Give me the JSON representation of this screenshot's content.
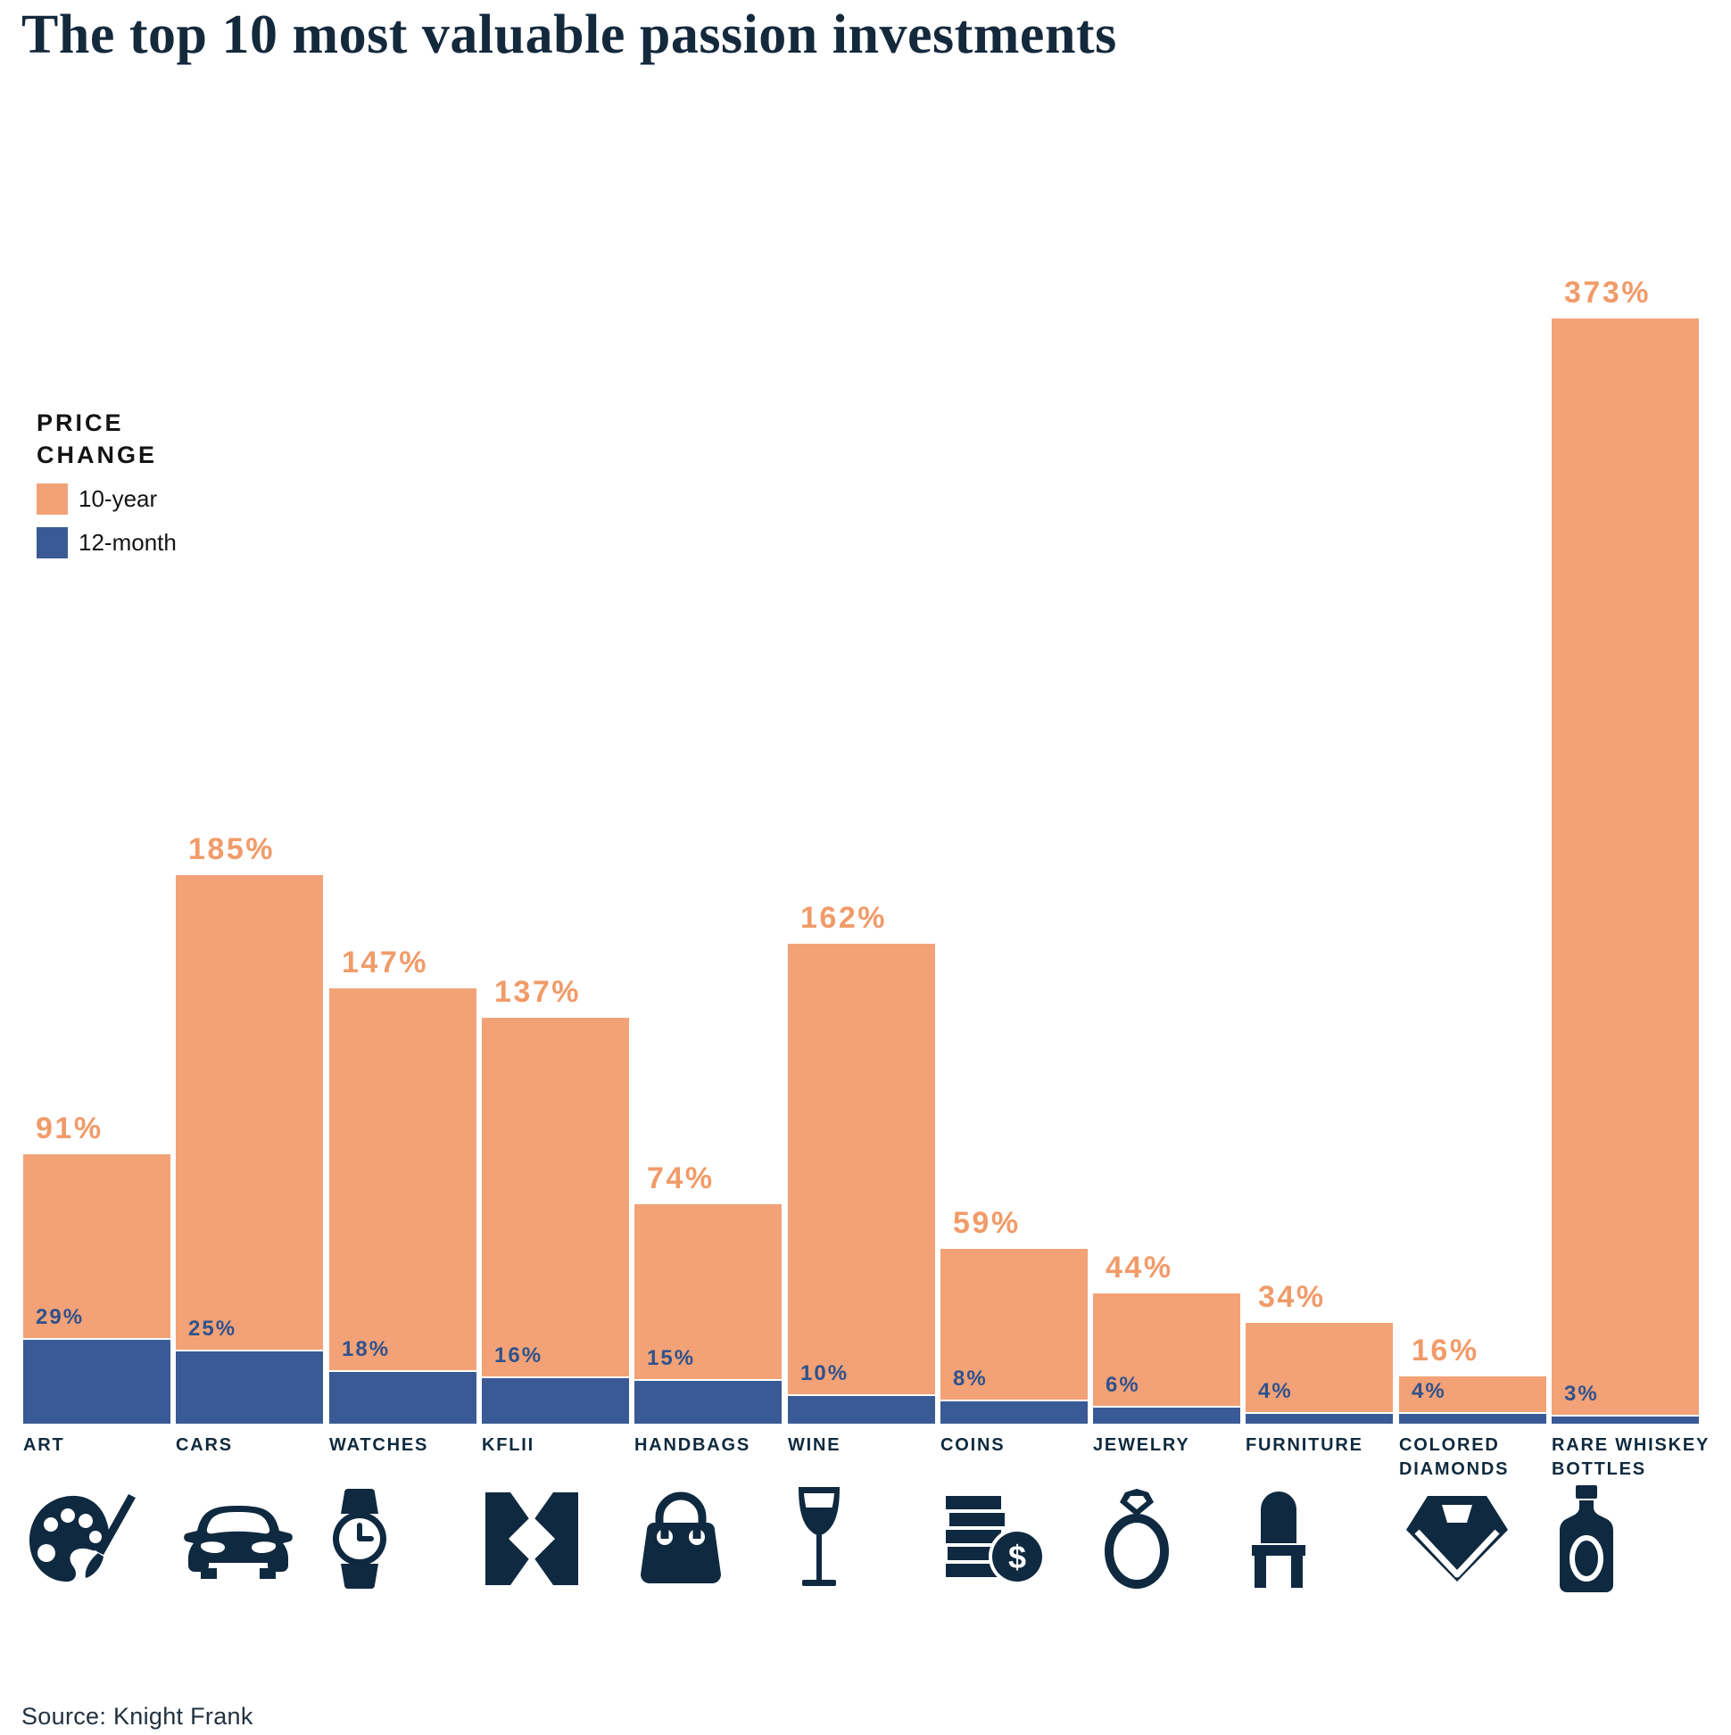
{
  "title": "The top 10 most valuable passion investments",
  "legend": {
    "title": "PRICE CHANGE",
    "title_lines": [
      "PRICE",
      "CHANGE"
    ],
    "items": [
      {
        "label": "10-year",
        "color": "#F2A276"
      },
      {
        "label": "12-month",
        "color": "#3A5A96"
      }
    ]
  },
  "source": "Source: Knight Frank",
  "colors": {
    "bar_10_year": "#F2A276",
    "bar_12_month": "#3A5A96",
    "value_label_10_year": "#F19B69",
    "value_label_12_month": "#30528D",
    "icon_navy": "#0F2940",
    "title_navy": "#14293C",
    "background": "#FFFFFF"
  },
  "chart_data": {
    "type": "bar",
    "title": "The top 10 most valuable passion investments",
    "unit": "%",
    "ylim": [
      0,
      373
    ],
    "grid": false,
    "legend_position": "upper-left",
    "value_labels": "above-bars",
    "categories": [
      "ART",
      "CARS",
      "WATCHES",
      "KFLII",
      "HANDBAGS",
      "WINE",
      "COINS",
      "JEWELRY",
      "FURNITURE",
      "COLORED DIAMONDS",
      "RARE WHISKEY BOTTLES"
    ],
    "series": [
      {
        "name": "10-year",
        "color": "#F2A276",
        "values": [
          91,
          185,
          147,
          137,
          74,
          162,
          59,
          44,
          34,
          16,
          373
        ]
      },
      {
        "name": "12-month",
        "color": "#3A5A96",
        "values": [
          29,
          25,
          18,
          16,
          15,
          10,
          8,
          6,
          4,
          4,
          3
        ]
      }
    ],
    "bars": [
      {
        "category": "ART",
        "label_lines": [
          "ART"
        ],
        "ten_year": 91,
        "twelve_month": 29,
        "icon": "palette-icon"
      },
      {
        "category": "CARS",
        "label_lines": [
          "CARS"
        ],
        "ten_year": 185,
        "twelve_month": 25,
        "icon": "car-icon"
      },
      {
        "category": "WATCHES",
        "label_lines": [
          "WATCHES"
        ],
        "ten_year": 147,
        "twelve_month": 18,
        "icon": "watch-icon"
      },
      {
        "category": "KFLII",
        "label_lines": [
          "KFLII"
        ],
        "ten_year": 137,
        "twelve_month": 16,
        "icon": "kflii-logo-icon"
      },
      {
        "category": "HANDBAGS",
        "label_lines": [
          "HANDBAGS"
        ],
        "ten_year": 74,
        "twelve_month": 15,
        "icon": "handbag-icon"
      },
      {
        "category": "WINE",
        "label_lines": [
          "WINE"
        ],
        "ten_year": 162,
        "twelve_month": 10,
        "icon": "wine-glass-icon"
      },
      {
        "category": "COINS",
        "label_lines": [
          "COINS"
        ],
        "ten_year": 59,
        "twelve_month": 8,
        "icon": "coins-icon"
      },
      {
        "category": "JEWELRY",
        "label_lines": [
          "JEWELRY"
        ],
        "ten_year": 44,
        "twelve_month": 6,
        "icon": "ring-icon"
      },
      {
        "category": "FURNITURE",
        "label_lines": [
          "FURNITURE"
        ],
        "ten_year": 34,
        "twelve_month": 4,
        "icon": "chair-icon"
      },
      {
        "category": "COLORED DIAMONDS",
        "label_lines": [
          "COLORED",
          "DIAMONDS"
        ],
        "ten_year": 16,
        "twelve_month": 4,
        "icon": "diamond-icon"
      },
      {
        "category": "RARE WHISKEY BOTTLES",
        "label_lines": [
          "RARE WHISKEY",
          "BOTTLES"
        ],
        "ten_year": 373,
        "twelve_month": 3,
        "icon": "whiskey-bottle-icon"
      }
    ]
  }
}
